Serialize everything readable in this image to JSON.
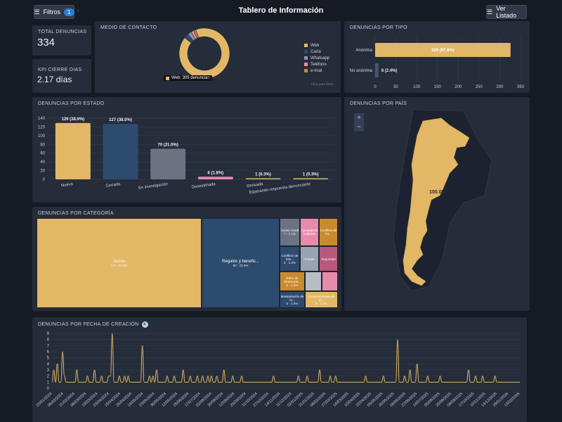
{
  "header": {
    "filters_label": "Filtros",
    "filters_count": "1",
    "title": "Tablero de Información",
    "list_label": "Ver Listado"
  },
  "kpis": {
    "total_label": "TOTAL DENUNCIAS",
    "total_value": "334",
    "cierre_label": "KPI CIERRE DIAS",
    "cierre_value": "2.17 días"
  },
  "contacto": {
    "title": "MEDIO DE CONTACTO",
    "tooltip": "Web: 305 denuncias",
    "tooltip_pct": "3%",
    "hint": "Click para filtrar",
    "legend": [
      "Web",
      "Carta",
      "Whatsapp",
      "Teléfono",
      "e-mail"
    ]
  },
  "tipo": {
    "title": "DENUNCIAS POR TIPO"
  },
  "estado": {
    "title": "DENUNCIAS POR ESTADO"
  },
  "categoria": {
    "title": "DENUNCIAS POR CATEGORÍA",
    "cells": [
      {
        "label": "Acoso",
        "sub": "170 · 50.9%"
      },
      {
        "label": "Regalos y benefic...",
        "sub": "80 · 23.9%"
      },
      {
        "label": "Acoso moral",
        "sub": "7 · 2.1%"
      },
      {
        "label": "Apropiación indebida",
        "sub": ""
      },
      {
        "label": "Conflicto de int...",
        "sub": ""
      },
      {
        "label": "Conflicto de inte...",
        "sub": "5 · 1.5%"
      },
      {
        "label": "Fraude",
        "sub": ""
      },
      {
        "label": "Seguridad",
        "sub": ""
      },
      {
        "label": "Robo de informació...",
        "sub": "5 · 1.5%"
      },
      {
        "label": "Manipulación de co...",
        "sub": "5 · 1.5%"
      },
      {
        "label": "Consumo/venta de p...",
        "sub": "5 · 1.5%"
      }
    ]
  },
  "pais": {
    "title": "DENUNCIAS POR PAÍS",
    "label": "100.0%",
    "zoom_in": "+",
    "zoom_out": "−"
  },
  "fecha": {
    "title": "DENUNCIAS POR FECHA DE CREACIÓN",
    "clear_icon": "×"
  },
  "colors": {
    "gold": "#e2b766",
    "navy": "#2d4a6f",
    "slate": "#6b7383",
    "pink": "#e88aa9",
    "panel": "#252c3a"
  },
  "chart_data": [
    {
      "type": "pie",
      "title": "MEDIO DE CONTACTO",
      "categories": [
        "Web",
        "Carta",
        "Whatsapp",
        "Teléfono",
        "e-mail"
      ],
      "values": [
        305,
        10,
        8,
        6,
        5
      ],
      "colors": [
        "#e2b766",
        "#2d4a6f",
        "#8c94a3",
        "#e88aa9",
        "#c98a2e"
      ],
      "donut": true
    },
    {
      "type": "bar",
      "title": "DENUNCIAS POR TIPO",
      "orientation": "horizontal",
      "categories": [
        "Anónima",
        "No anónima"
      ],
      "values": [
        326,
        8
      ],
      "labels": [
        "326 (97.6%)",
        "8 (2.4%)"
      ],
      "xlim": [
        0,
        350
      ],
      "xticks": [
        0,
        50,
        100,
        150,
        200,
        250,
        300,
        350
      ]
    },
    {
      "type": "bar",
      "title": "DENUNCIAS POR ESTADO",
      "categories": [
        "Nueva",
        "Cerrada",
        "En investigación",
        "Desestimada",
        "Derivada",
        "Esperando respuesta denunciante"
      ],
      "values": [
        129,
        127,
        70,
        6,
        1,
        1
      ],
      "labels": [
        "129 (38.6%)",
        "127 (38.0%)",
        "70 (21.0%)",
        "6 (1.8%)",
        "1 (0.3%)",
        "1 (0.3%)"
      ],
      "colors": [
        "#e2b766",
        "#2d4a6f",
        "#6b7383",
        "#e88aa9",
        "#e2b766",
        "#e2b766"
      ],
      "ylim": [
        0,
        140
      ],
      "yticks": [
        0,
        20,
        40,
        60,
        80,
        100,
        120,
        140
      ]
    },
    {
      "type": "area",
      "title": "DENUNCIAS POR FECHA DE CREACIÓN",
      "ylim": [
        0,
        9
      ],
      "yticks": [
        0,
        1,
        2,
        3,
        4,
        5,
        6,
        7,
        8,
        9
      ],
      "xticklabels": [
        "23/01/2024",
        "06/02/2024",
        "21/02/2024",
        "06/03/2024",
        "19/03/2024",
        "03/04/2024",
        "15/04/2024",
        "25/04/2024",
        "14/05/2024",
        "23/05/2024",
        "30/05/2024",
        "12/06/2024",
        "25/06/2024",
        "17/07/2024",
        "02/08/2024",
        "20/08/2024",
        "12/09/2024",
        "25/09/2024",
        "11/10/2024",
        "27/10/2024",
        "14/11/2024",
        "11/12/2024",
        "02/01/2025",
        "21/01/2025",
        "06/02/2025",
        "27/02/2025",
        "14/03/2025",
        "10/04/2025",
        "22/04/2025",
        "05/05/2025",
        "20/05/2025",
        "06/06/2025",
        "27/06/2025",
        "14/07/2025",
        "05/08/2025",
        "26/08/2025",
        "09/09/2025",
        "17/10/2025",
        "10/11/2025",
        "14/12/2025",
        "26/01/2026",
        "13/02/2026"
      ],
      "values": [
        1,
        3,
        1,
        4,
        1,
        1,
        6,
        2,
        1,
        1,
        1,
        1,
        1,
        1,
        3,
        1,
        1,
        1,
        1,
        1,
        2,
        1,
        1,
        1,
        3,
        1,
        1,
        1,
        2,
        1,
        1,
        1,
        2,
        2,
        9,
        1,
        1,
        1,
        2,
        1,
        1,
        2,
        1,
        2,
        1,
        1,
        1,
        1,
        1,
        1,
        1,
        7,
        1,
        1,
        1,
        2,
        1,
        2,
        1,
        3,
        1,
        1,
        1,
        1,
        1,
        2,
        1,
        1,
        1,
        2,
        1,
        1,
        1,
        1,
        3,
        1,
        1,
        1,
        2,
        1,
        1,
        1,
        2,
        1,
        1,
        2,
        1,
        1,
        2,
        1,
        2,
        1,
        1,
        2,
        1,
        1,
        1,
        3,
        1,
        1,
        1,
        1,
        2,
        1,
        1,
        1,
        1,
        2,
        1,
        1,
        1,
        1,
        1,
        1,
        1,
        1,
        1,
        1,
        1,
        1,
        1,
        1,
        1,
        1,
        1,
        2,
        1,
        1,
        1,
        1,
        1,
        1,
        1,
        1,
        1,
        1,
        1,
        1,
        1,
        2,
        1,
        1,
        1,
        1,
        2,
        1,
        1,
        1,
        1,
        1,
        1,
        3,
        1,
        1,
        1,
        1,
        1,
        2,
        1,
        1,
        2,
        1,
        1,
        1,
        1,
        1,
        1,
        1,
        1,
        1,
        1,
        1,
        1,
        1,
        1,
        1,
        1,
        2,
        1,
        1,
        1,
        1,
        1,
        1,
        1,
        1,
        1,
        2,
        1,
        1,
        1,
        1,
        1,
        1,
        1,
        8,
        1,
        1,
        1,
        2,
        1,
        1,
        3,
        1,
        1,
        1,
        4,
        1,
        1,
        1,
        1,
        1,
        2,
        1,
        1,
        1,
        1,
        1,
        1,
        2,
        1,
        1,
        1,
        1,
        1,
        1,
        1,
        1,
        1,
        1,
        1,
        1,
        1,
        1,
        1,
        3,
        1,
        1,
        1,
        2,
        1,
        1,
        1,
        2,
        1,
        1,
        1,
        1,
        1,
        1,
        2,
        1,
        1,
        1,
        1,
        1,
        1,
        1,
        1,
        1,
        1,
        1,
        1,
        1,
        1
      ]
    }
  ]
}
